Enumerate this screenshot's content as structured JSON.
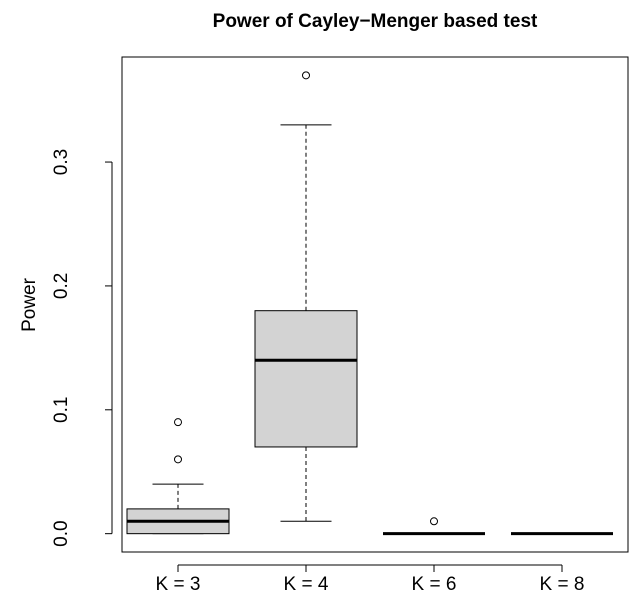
{
  "chart_data": {
    "type": "boxplot",
    "title": "Power of Cayley−Menger based test",
    "ylabel": "Power",
    "categories": [
      "K = 3",
      "K = 4",
      "K = 6",
      "K = 8"
    ],
    "min": [
      0,
      0.01,
      0,
      0
    ],
    "q1": [
      0,
      0.07,
      0,
      0
    ],
    "median": [
      0.01,
      0.14,
      0,
      0
    ],
    "q3": [
      0.02,
      0.18,
      0,
      0
    ],
    "max": [
      0.04,
      0.33,
      0,
      0
    ],
    "outliers": [
      [
        0.06,
        0.09
      ],
      [
        0.37
      ],
      [
        0.01
      ],
      []
    ],
    "color": "#d3d3d3",
    "ylim": [
      -0.0148,
      0.3848
    ],
    "yticks": [
      {
        "value": 0,
        "label": "0.0"
      },
      0.1,
      0.2,
      0.3
    ]
  }
}
